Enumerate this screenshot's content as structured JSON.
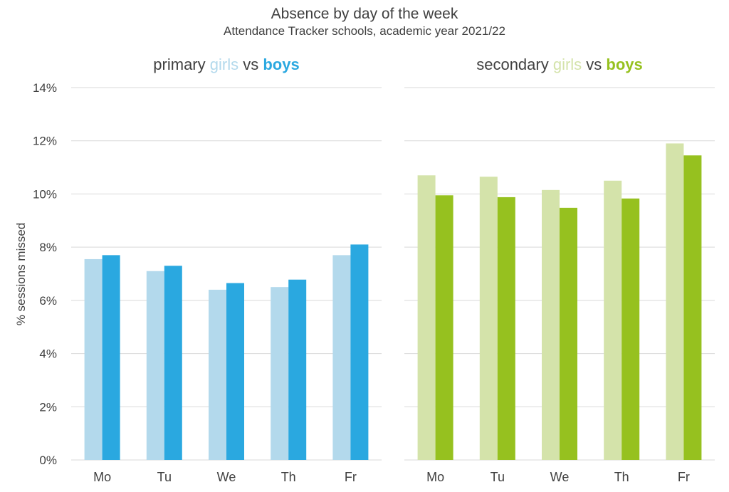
{
  "colors": {
    "primary_girls": "#b3d9ec",
    "primary_boys": "#2aa8e0",
    "secondary_girls": "#d4e3aa",
    "secondary_boys": "#96c11f",
    "gridline": "#d9d9d9",
    "text": "#404040"
  },
  "chart_data": {
    "type": "bar",
    "title": "Absence by day of the week",
    "subtitle": "Attendance Tracker schools, academic year 2021/22",
    "ylabel": "% sessions missed",
    "ylim": [
      0,
      14
    ],
    "yticks": [
      "0%",
      "2%",
      "4%",
      "6%",
      "8%",
      "10%",
      "12%",
      "14%"
    ],
    "grid": true,
    "panels": [
      {
        "name": "primary",
        "title": {
          "prefix": "primary ",
          "girls": "girls",
          "vs": " vs ",
          "boys": "boys"
        },
        "categories": [
          "Mo",
          "Tu",
          "We",
          "Th",
          "Fr"
        ],
        "series": [
          {
            "name": "girls",
            "values": [
              7.55,
              7.1,
              6.4,
              6.5,
              7.7
            ]
          },
          {
            "name": "boys",
            "values": [
              7.7,
              7.3,
              6.65,
              6.78,
              8.1
            ]
          }
        ]
      },
      {
        "name": "secondary",
        "title": {
          "prefix": "secondary ",
          "girls": "girls",
          "vs": " vs ",
          "boys": "boys"
        },
        "categories": [
          "Mo",
          "Tu",
          "We",
          "Th",
          "Fr"
        ],
        "series": [
          {
            "name": "girls",
            "values": [
              10.7,
              10.65,
              10.15,
              10.5,
              11.9
            ]
          },
          {
            "name": "boys",
            "values": [
              9.95,
              9.88,
              9.48,
              9.83,
              11.45
            ]
          }
        ]
      }
    ]
  }
}
